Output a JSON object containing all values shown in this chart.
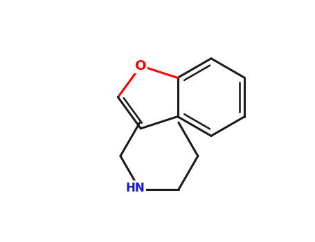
{
  "background_color": "#ffffff",
  "bond_color": "#1a1a1a",
  "oxygen_color": "#ff0000",
  "nitrogen_color": "#1a1acc",
  "bond_lw": 2.2,
  "inner_ring_lw": 1.4,
  "figsize": [
    4.55,
    3.5
  ],
  "dpi": 100,
  "xlim": [
    -1,
    9
  ],
  "ylim": [
    -1,
    7
  ],
  "O_label": "O",
  "N_label": "HN",
  "O_fontsize": 14,
  "N_fontsize": 12
}
